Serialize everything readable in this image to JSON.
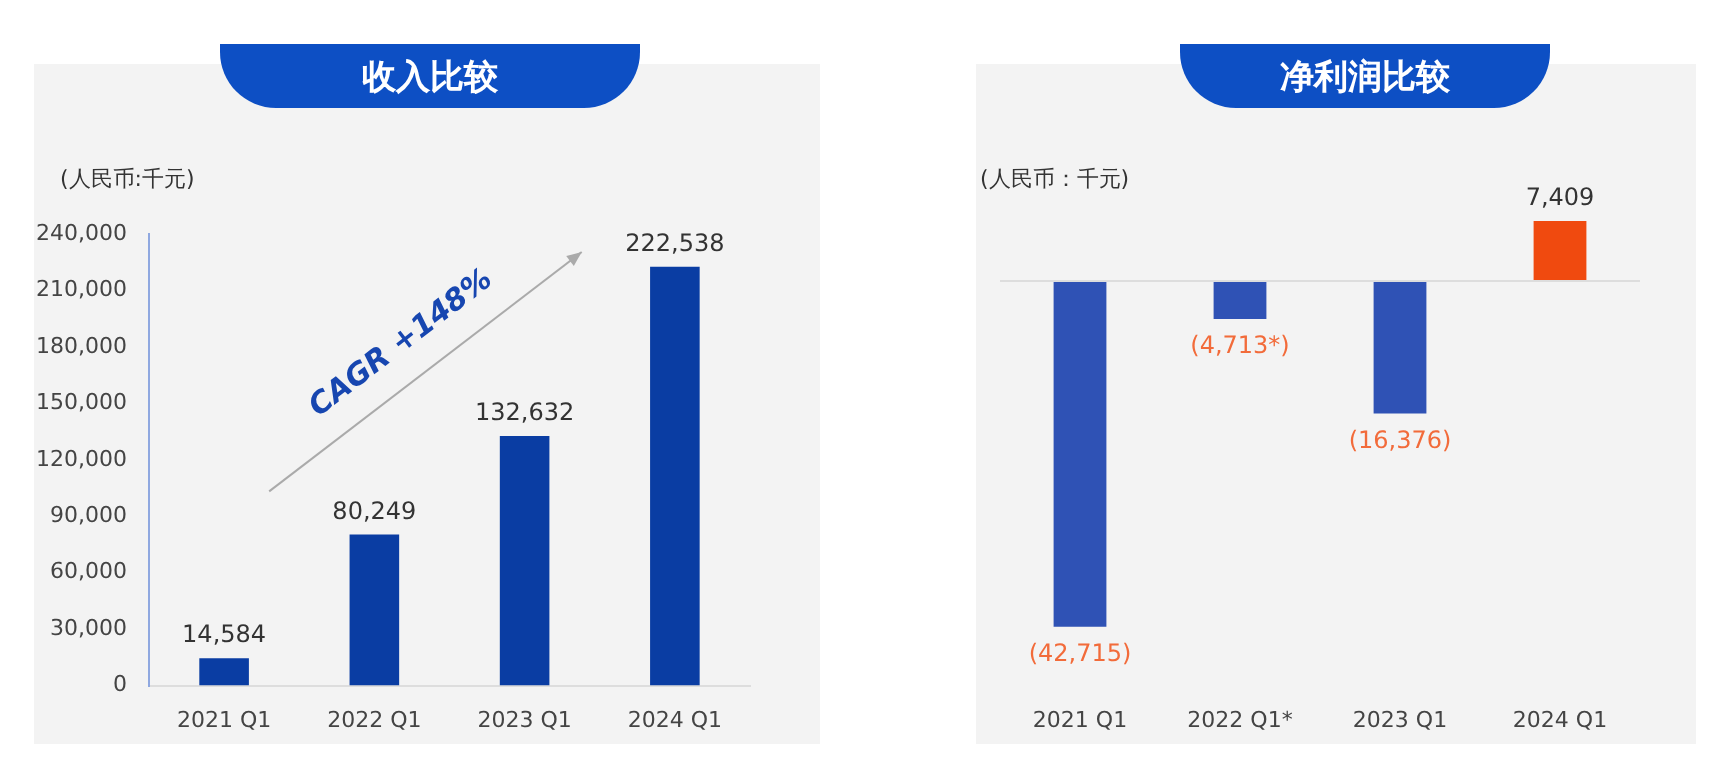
{
  "chart_data": [
    {
      "type": "bar",
      "title": "收入比较",
      "ylabel": "(人民币:千元)",
      "categories": [
        "2021 Q1",
        "2022 Q1",
        "2023 Q1",
        "2024 Q1"
      ],
      "values": [
        14584,
        80249,
        132632,
        222538
      ],
      "color": "#0a3da3",
      "value_labels": [
        "14,584",
        "80,249",
        "132,632",
        "222,538"
      ],
      "ylim": [
        0,
        240000
      ],
      "yticks": [
        {
          "value": 0,
          "label": "0"
        },
        {
          "value": 30000,
          "label": "30,000"
        },
        {
          "value": 60000,
          "label": "60,000"
        },
        {
          "value": 90000,
          "label": "90,000"
        },
        {
          "value": 120000,
          "label": "120,000"
        },
        {
          "value": 150000,
          "label": "150,000"
        },
        {
          "value": 180000,
          "label": "180,000"
        },
        {
          "value": 210000,
          "label": "210,000"
        },
        {
          "value": 240000,
          "label": "240,000"
        }
      ],
      "annotations": [
        "CAGR +148%"
      ],
      "grid": false,
      "legend": false
    },
    {
      "type": "bar",
      "title": "净利润比较",
      "ylabel": "(人民币：千元)",
      "categories": [
        "2021 Q1",
        "2022 Q1*",
        "2023 Q1",
        "2024 Q1"
      ],
      "values": [
        -42715,
        -4713,
        -16376,
        7409
      ],
      "colors": [
        "#2f52b5",
        "#2f52b5",
        "#2f52b5",
        "#f04a0f"
      ],
      "value_labels": [
        "(42,715)",
        "(4,713*)",
        "(16,376)",
        "7,409"
      ],
      "tick_labels": "x",
      "grid": false,
      "legend": false
    }
  ]
}
